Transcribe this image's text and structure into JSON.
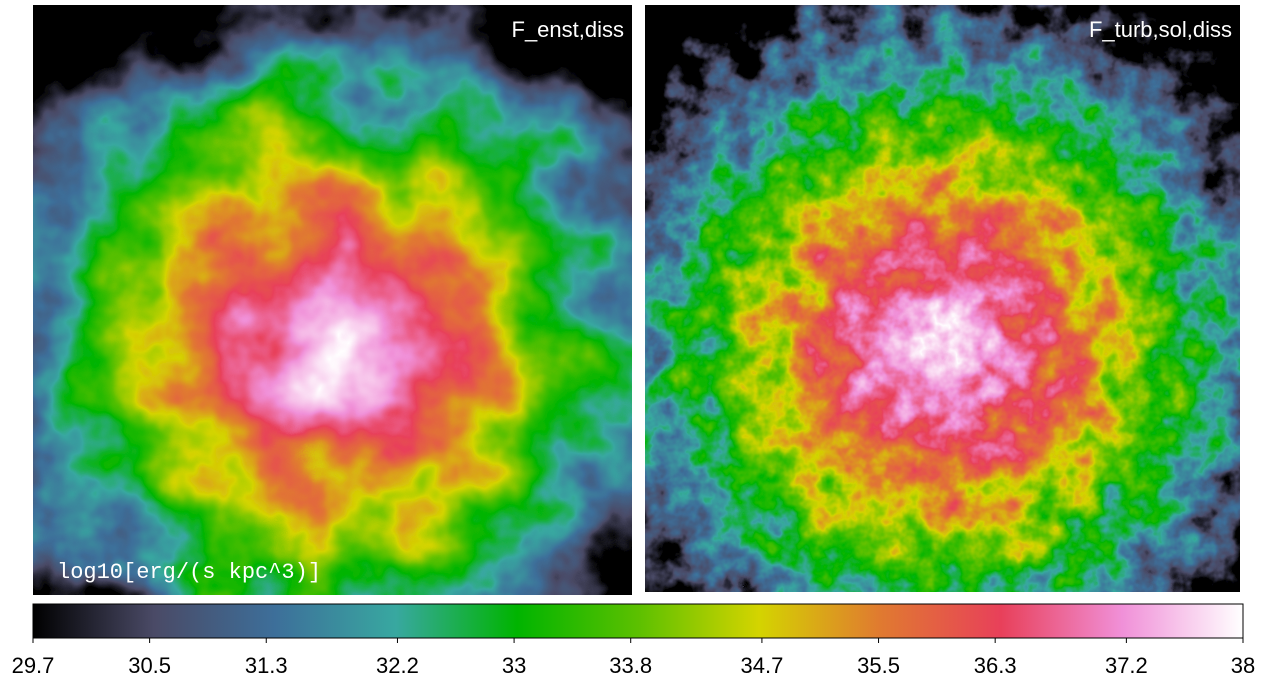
{
  "chart_data": {
    "type": "heatmap",
    "panels": [
      {
        "title": "F_enst,diss"
      },
      {
        "title": "F_turb,sol,diss"
      }
    ],
    "colorbar_label": "log10[erg/(s kpc^3)]",
    "colormap": [
      "#000000",
      "#4a4a66",
      "#3d6f9a",
      "#38a8a0",
      "#00b400",
      "#5cc000",
      "#d4d400",
      "#e07a30",
      "#e8405a",
      "#f090d8",
      "#ffffff"
    ],
    "clim": [
      29.7,
      38
    ],
    "cticks": [
      29.7,
      30.5,
      31.3,
      32.2,
      33,
      33.8,
      34.7,
      35.5,
      36.3,
      37.2,
      38
    ]
  }
}
